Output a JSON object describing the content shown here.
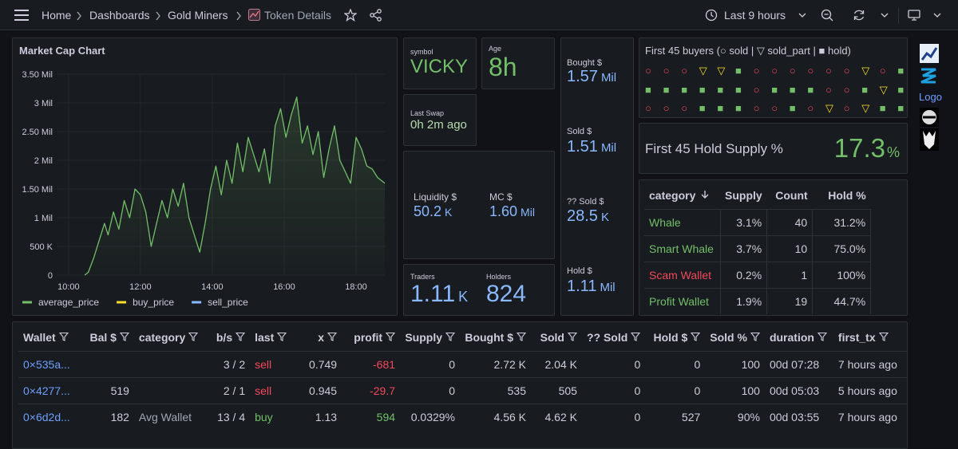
{
  "nav": {
    "breadcrumbs": [
      "Home",
      "Dashboards",
      "Gold Miners",
      "Token Details"
    ],
    "time_range": "Last 9 hours"
  },
  "chart_data": {
    "type": "line",
    "title": "Market Cap Chart",
    "x": [
      10.45,
      10.55,
      10.7,
      10.85,
      11.0,
      11.1,
      11.25,
      11.4,
      11.55,
      11.7,
      11.85,
      12.0,
      12.15,
      12.3,
      12.45,
      12.6,
      12.75,
      12.9,
      13.05,
      13.2,
      13.35,
      13.5,
      13.65,
      13.8,
      13.95,
      14.1,
      14.25,
      14.4,
      14.55,
      14.7,
      14.85,
      15.0,
      15.15,
      15.3,
      15.45,
      15.6,
      15.75,
      15.9,
      16.05,
      16.2,
      16.35,
      16.5,
      16.65,
      16.8,
      16.95,
      17.1,
      17.25,
      17.4,
      17.55,
      17.7,
      17.85,
      18.0,
      18.15,
      18.3,
      18.45,
      18.6,
      18.8
    ],
    "xlim": [
      9.67,
      18.8
    ],
    "xticks": [
      {
        "value": 10,
        "label": "10:00"
      },
      {
        "value": 12,
        "label": "12:00"
      },
      {
        "value": 14,
        "label": "14:00"
      },
      {
        "value": 16,
        "label": "16:00"
      },
      {
        "value": 18,
        "label": "18:00"
      }
    ],
    "ylim": [
      0,
      3500000
    ],
    "yticks": [
      0,
      {
        "value": 500000,
        "label": "500 K"
      },
      {
        "value": 1000000,
        "label": "1 Mil"
      },
      {
        "value": 1500000,
        "label": "1.50 Mil"
      },
      {
        "value": 2000000,
        "label": "2 Mil"
      },
      {
        "value": 2500000,
        "label": "2.50 Mil"
      },
      {
        "value": 3000000,
        "label": "3 Mil"
      },
      {
        "value": 3500000,
        "label": "3.50 Mil"
      }
    ],
    "grid": true,
    "legend": "bottom",
    "series": [
      {
        "name": "average_price",
        "color": "#73bf69",
        "values": [
          0,
          50000,
          300000,
          600000,
          900000,
          700000,
          1100000,
          800000,
          1300000,
          1000000,
          1500000,
          1400000,
          1100000,
          500000,
          900000,
          1300000,
          1000000,
          1500000,
          1200000,
          1600000,
          1000000,
          700000,
          400000,
          900000,
          1500000,
          1900000,
          1400000,
          2000000,
          1600000,
          2300000,
          1800000,
          2400000,
          2100000,
          1800000,
          2200000,
          1600000,
          2600000,
          2900000,
          2400000,
          2800000,
          3100000,
          2300000,
          2600000,
          2100000,
          2500000,
          1700000,
          2200000,
          2600000,
          2000000,
          1800000,
          1600000,
          2400000,
          2200000,
          1900000,
          1850000,
          1700000,
          1600000
        ]
      },
      {
        "name": "buy_price",
        "color": "#fade2a"
      },
      {
        "name": "sell_price",
        "color": "#8ab8ff"
      }
    ]
  },
  "stats": {
    "symbol": {
      "label": "symbol",
      "value": "VICKY"
    },
    "age": {
      "label": "Age",
      "value": "8h"
    },
    "last_swap": {
      "label": "Last Swap",
      "value": "0h 2m ago"
    },
    "liquidity": {
      "label": "Liquidity $",
      "value": "50.2",
      "unit": "K"
    },
    "mc": {
      "label": "MC $",
      "value": "1.60",
      "unit": "Mil"
    },
    "traders": {
      "label": "Traders",
      "value": "1.11",
      "unit": "K"
    },
    "holders": {
      "label": "Holders",
      "value": "824"
    },
    "bought": {
      "label": "Bought $",
      "value": "1.57",
      "unit": "Mil"
    },
    "sold": {
      "label": "Sold $",
      "value": "1.51",
      "unit": "Mil"
    },
    "unknown_sold": {
      "label": "?? Sold $",
      "value": "28.5",
      "unit": "K"
    },
    "hold": {
      "label": "Hold $",
      "value": "1.11",
      "unit": "Mil"
    }
  },
  "buyers": {
    "title": "First 45 buyers (○ sold | ▽ sold_part | ■ hold)",
    "symbol_colors": {
      "○": "#f2495c",
      "▽": "#fade2a",
      "■": "#73bf69"
    },
    "rows": [
      [
        "○",
        "○",
        "○",
        "▽",
        "▽",
        "■",
        "○",
        "○",
        "○",
        "○",
        "○",
        "○",
        "▽",
        "○",
        "■"
      ],
      [
        "■",
        "■",
        "■",
        "■",
        "■",
        "■",
        "○",
        "■",
        "■",
        "■",
        "○",
        "○",
        "■",
        "▽",
        "■"
      ],
      [
        "○",
        "○",
        "○",
        "■",
        "■",
        "■",
        "○",
        "○",
        "■",
        "○",
        "▽",
        "○",
        "▽",
        "■",
        "■"
      ]
    ]
  },
  "hold_supply": {
    "label": "First 45 Hold Supply %",
    "value": "17.3",
    "unit": "%"
  },
  "category_table": {
    "headers": [
      "category",
      "Supply",
      "Count",
      "Hold %"
    ],
    "rows": [
      [
        "Whale",
        "3.1%",
        "40",
        "31.2%"
      ],
      [
        "Smart Whale",
        "3.7%",
        "10",
        "75.0%"
      ],
      [
        "Scam Wallet",
        "0.2%",
        "1",
        "100%"
      ],
      [
        "Profit Wallet",
        "1.9%",
        "19",
        "44.7%"
      ]
    ],
    "category_colors": [
      "#73bf69",
      "#73bf69",
      "#f2495c",
      "#73bf69"
    ]
  },
  "side": {
    "logo": "Logo"
  },
  "wallet_table": {
    "headers": [
      "Wallet",
      "Bal $",
      "category",
      "b/s",
      "last",
      "x",
      "profit",
      "Supply",
      "Bought $",
      "Sold",
      "?? Sold",
      "Hold $",
      "Sold %",
      "duration",
      "first_tx"
    ],
    "last_colors": {
      "sell": "#f2495c",
      "buy": "#73bf69"
    },
    "rows": [
      [
        "0×535a...",
        null,
        null,
        "3 / 2",
        "sell",
        "0.749",
        "-681",
        "0",
        "2.72 K",
        "2.04 K",
        "0",
        "0",
        "100",
        "00d 07:28",
        "7 hours ago"
      ],
      [
        "0×4277...",
        "519",
        null,
        "2 / 1",
        "sell",
        "0.945",
        "-29.7",
        "0",
        "535",
        "505",
        "0",
        "0",
        "100",
        "00d 05:03",
        "5 hours ago"
      ],
      [
        "0×6d2d...",
        "182",
        "Avg Wallet",
        "13 / 4",
        "buy",
        "1.13",
        "594",
        "0.0329%",
        "4.56 K",
        "4.62 K",
        "0",
        "527",
        "90%",
        "00d 03:55",
        "7 hours ago"
      ]
    ]
  }
}
